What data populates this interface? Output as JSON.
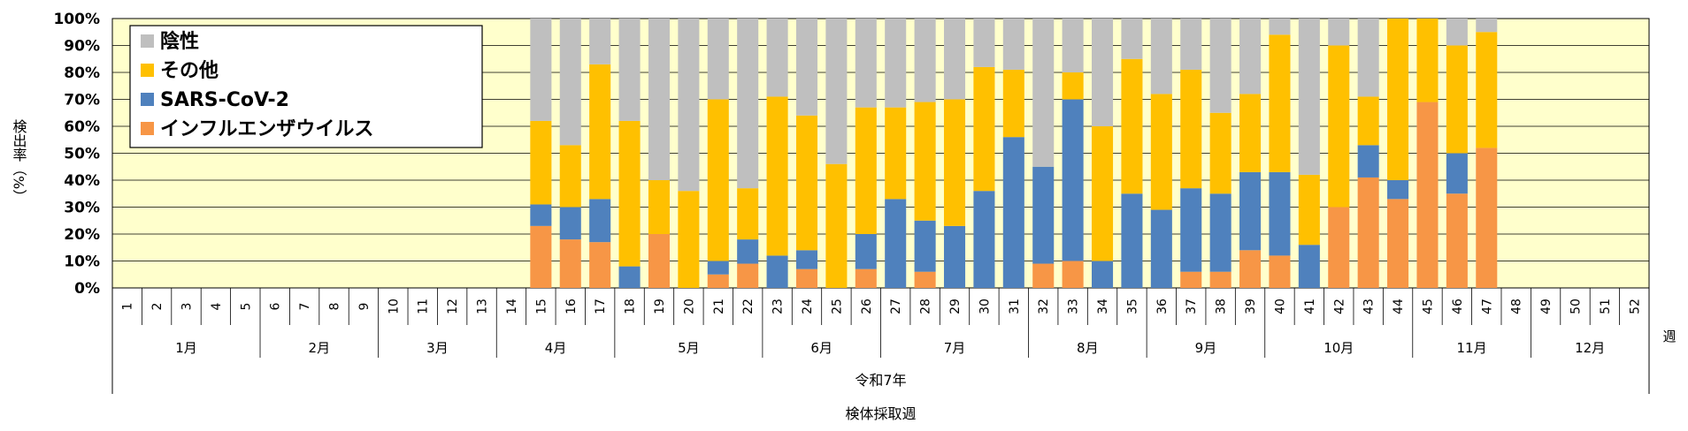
{
  "chart_data": {
    "type": "bar",
    "stacked": true,
    "ylabel": "検出率（%）",
    "ylim": [
      0,
      100
    ],
    "yticks": [
      "0%",
      "10%",
      "20%",
      "30%",
      "40%",
      "50%",
      "60%",
      "70%",
      "80%",
      "90%",
      "100%"
    ],
    "weeks": [
      "1",
      "2",
      "3",
      "4",
      "5",
      "6",
      "7",
      "8",
      "9",
      "10",
      "11",
      "12",
      "13",
      "14",
      "15",
      "16",
      "17",
      "18",
      "19",
      "20",
      "21",
      "22",
      "23",
      "24",
      "25",
      "26",
      "27",
      "28",
      "29",
      "30",
      "31",
      "32",
      "33",
      "34",
      "35",
      "36",
      "37",
      "38",
      "39",
      "40",
      "41",
      "42",
      "43",
      "44",
      "45",
      "46",
      "47",
      "48",
      "49",
      "50",
      "51",
      "52"
    ],
    "week_unit": "週",
    "months": [
      {
        "label": "1月",
        "start": 1,
        "end": 5
      },
      {
        "label": "2月",
        "start": 6,
        "end": 9
      },
      {
        "label": "3月",
        "start": 10,
        "end": 13
      },
      {
        "label": "4月",
        "start": 14,
        "end": 17
      },
      {
        "label": "5月",
        "start": 18,
        "end": 22
      },
      {
        "label": "6月",
        "start": 23,
        "end": 26
      },
      {
        "label": "7月",
        "start": 27,
        "end": 31
      },
      {
        "label": "8月",
        "start": 32,
        "end": 35
      },
      {
        "label": "9月",
        "start": 36,
        "end": 39
      },
      {
        "label": "10月",
        "start": 40,
        "end": 44
      },
      {
        "label": "11月",
        "start": 45,
        "end": 48
      },
      {
        "label": "12月",
        "start": 49,
        "end": 52
      }
    ],
    "era_label": "令和7年",
    "xlabel": "検体採取週",
    "grid": true,
    "legend_position": "top-left",
    "series": [
      {
        "name": "インフルエンザウイルス",
        "color": "#F79646",
        "values": [
          null,
          null,
          null,
          null,
          null,
          null,
          null,
          null,
          null,
          null,
          null,
          null,
          null,
          null,
          23,
          18,
          17,
          0,
          20,
          0,
          5,
          9,
          0,
          7,
          0,
          7,
          0,
          6,
          0,
          0,
          0,
          9,
          10,
          0,
          0,
          0,
          6,
          6,
          14,
          12,
          0,
          30,
          41,
          33,
          69,
          35,
          52,
          null,
          null,
          null,
          null,
          null
        ]
      },
      {
        "name": "SARS-CoV-2",
        "color": "#4F81BD",
        "values": [
          null,
          null,
          null,
          null,
          null,
          null,
          null,
          null,
          null,
          null,
          null,
          null,
          null,
          null,
          8,
          12,
          16,
          8,
          0,
          0,
          5,
          9,
          12,
          7,
          0,
          13,
          33,
          19,
          23,
          36,
          56,
          36,
          60,
          10,
          35,
          29,
          31,
          29,
          29,
          31,
          16,
          0,
          12,
          7,
          0,
          15,
          0,
          null,
          null,
          null,
          null,
          null
        ]
      },
      {
        "name": "その他",
        "color": "#FFC000",
        "values": [
          null,
          null,
          null,
          null,
          null,
          null,
          null,
          null,
          null,
          null,
          null,
          null,
          null,
          null,
          31,
          23,
          50,
          54,
          20,
          36,
          60,
          19,
          59,
          50,
          46,
          47,
          34,
          44,
          47,
          46,
          25,
          0,
          10,
          50,
          50,
          43,
          44,
          30,
          29,
          51,
          26,
          60,
          18,
          60,
          31,
          40,
          43,
          null,
          null,
          null,
          null,
          null
        ]
      },
      {
        "name": "陰性",
        "color": "#BFBFBF",
        "values": [
          null,
          null,
          null,
          null,
          null,
          null,
          null,
          null,
          null,
          null,
          null,
          null,
          null,
          null,
          38,
          47,
          17,
          38,
          60,
          64,
          30,
          63,
          29,
          36,
          54,
          33,
          33,
          31,
          30,
          18,
          19,
          55,
          20,
          40,
          15,
          28,
          19,
          35,
          28,
          6,
          58,
          10,
          29,
          0,
          0,
          10,
          5,
          null,
          null,
          null,
          null,
          null
        ]
      }
    ],
    "legend_order": [
      "陰性",
      "その他",
      "SARS-CoV-2",
      "インフルエンザウイルス"
    ],
    "plot_background": "#FFFFCC"
  }
}
